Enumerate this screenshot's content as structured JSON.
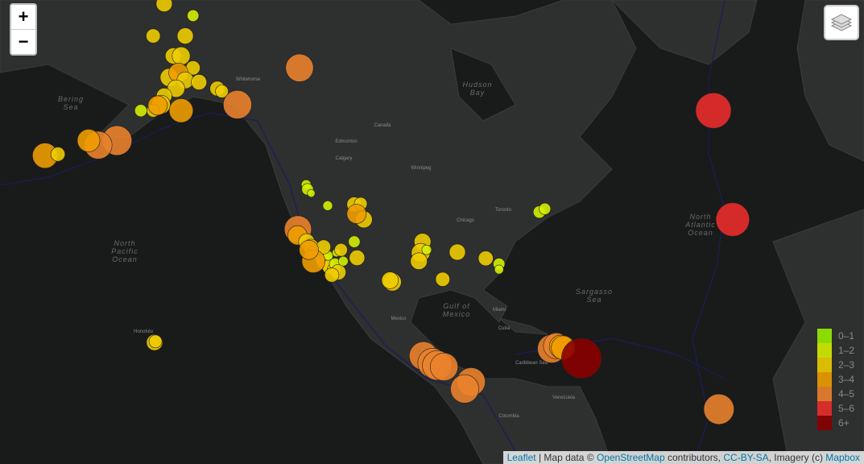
{
  "zoom": {
    "in": "+",
    "out": "−"
  },
  "legend": [
    {
      "label": "0–1",
      "color": "#98ee00"
    },
    {
      "label": "1–2",
      "color": "#d4ee00"
    },
    {
      "label": "2–3",
      "color": "#eecc00"
    },
    {
      "label": "3–4",
      "color": "#ee9c00"
    },
    {
      "label": "4–5",
      "color": "#ea822c"
    },
    {
      "label": "5–6",
      "color": "#ea2c2c"
    },
    {
      "label": "6+",
      "color": "#8b0000"
    }
  ],
  "map_labels": [
    [
      "Bering",
      "Sea"
    ],
    [
      "North",
      "Pacific",
      "Ocean"
    ],
    [
      "Hudson",
      "Bay"
    ],
    [
      "Gulf of",
      "Mexico"
    ],
    [
      "North",
      "Atlantic",
      "Ocean"
    ],
    [
      "Sargasso",
      "Sea"
    ],
    [
      "Caribbean Sea"
    ],
    [
      "Canada"
    ],
    [
      "Mexico"
    ],
    [
      "Chicago"
    ],
    [
      "Toronto"
    ],
    [
      "Miami"
    ],
    [
      "Cuba"
    ],
    [
      "Venezuela"
    ],
    [
      "Colombia"
    ],
    [
      "Edmonton"
    ],
    [
      "Calgary"
    ],
    [
      "Winnipeg"
    ],
    [
      "Whitehorse"
    ],
    [
      "Honolulu"
    ]
  ],
  "earthquakes": [
    [
      -153.6,
      67.9,
      2.5
    ],
    [
      -156.0,
      65.1,
      2.2
    ],
    [
      -149.0,
      65.1,
      2.5
    ],
    [
      -147.3,
      66.9,
      1.8
    ],
    [
      -151.6,
      63.2,
      2.5
    ],
    [
      -149.9,
      63.2,
      2.8
    ],
    [
      -147.3,
      62.0,
      2.2
    ],
    [
      -152.5,
      61.0,
      2.8
    ],
    [
      -150.5,
      61.5,
      3.0
    ],
    [
      -149.0,
      60.7,
      2.6
    ],
    [
      -151.0,
      59.8,
      2.7
    ],
    [
      -153.6,
      59.0,
      2.4
    ],
    [
      -154.3,
      58.0,
      2.9
    ],
    [
      -156.0,
      57.3,
      2.0
    ],
    [
      -158.7,
      57.3,
      1.9
    ],
    [
      -142.0,
      59.8,
      2.3
    ],
    [
      -141.0,
      59.5,
      2.0
    ],
    [
      -146.0,
      60.5,
      2.4
    ],
    [
      -155.0,
      57.9,
      3.0
    ],
    [
      -149.9,
      57.3,
      3.7
    ],
    [
      -137.6,
      58.0,
      4.4
    ],
    [
      -124.05,
      62.0,
      4.3
    ],
    [
      -163.9,
      53.6,
      4.6
    ],
    [
      -168.0,
      53.0,
      4.3
    ],
    [
      -170.1,
      53.6,
      3.5
    ],
    [
      -179.6,
      51.6,
      3.9
    ],
    [
      -176.8,
      51.8,
      2.2
    ],
    [
      -155.7,
      19.3,
      2.5
    ],
    [
      -155.5,
      19.5,
      2.0
    ],
    [
      -122.6,
      47.5,
      1.5
    ],
    [
      -122.3,
      46.8,
      1.8
    ],
    [
      -121.5,
      46.2,
      1.2
    ],
    [
      -117.9,
      44.3,
      1.5
    ],
    [
      -112.1,
      44.5,
      2.3
    ],
    [
      -110.7,
      44.6,
      2.0
    ],
    [
      -110.0,
      42.1,
      2.6
    ],
    [
      -111.6,
      43.0,
      3.0
    ],
    [
      -124.4,
      40.5,
      4.2
    ],
    [
      -124.5,
      39.5,
      3.0
    ],
    [
      -122.5,
      38.4,
      2.5
    ],
    [
      -121.5,
      37.5,
      2.4
    ],
    [
      -120.8,
      36.5,
      2.2
    ],
    [
      -119.5,
      35.8,
      2.0
    ],
    [
      -118.5,
      35.0,
      2.7
    ],
    [
      -117.5,
      34.0,
      2.3
    ],
    [
      -116.5,
      33.5,
      2.1
    ],
    [
      -117.8,
      36.0,
      1.5
    ],
    [
      -118.8,
      37.5,
      2.2
    ],
    [
      -116.3,
      34.5,
      1.8
    ],
    [
      -115.6,
      33.0,
      2.4
    ],
    [
      -121.0,
      35.0,
      3.6
    ],
    [
      -122.0,
      37.0,
      3.0
    ],
    [
      -116.0,
      36.5,
      1.3
    ],
    [
      -115.0,
      37.0,
      2.0
    ],
    [
      -114.5,
      35.0,
      1.5
    ],
    [
      -117.0,
      32.5,
      2.2
    ],
    [
      -112.1,
      38.4,
      1.8
    ],
    [
      -111.5,
      35.6,
      2.4
    ],
    [
      -103.8,
      31.2,
      2.8
    ],
    [
      -104.3,
      31.5,
      2.6
    ],
    [
      -97.2,
      38.4,
      2.6
    ],
    [
      -97.6,
      36.5,
      2.9
    ],
    [
      -98.0,
      35.0,
      2.6
    ],
    [
      -96.3,
      37.0,
      1.5
    ],
    [
      -92.8,
      31.7,
      2.2
    ],
    [
      -89.6,
      36.6,
      2.5
    ],
    [
      -83.4,
      35.5,
      2.3
    ],
    [
      -80.5,
      34.5,
      1.8
    ],
    [
      -80.5,
      33.5,
      1.4
    ],
    [
      -71.7,
      43.3,
      1.9
    ],
    [
      -70.5,
      43.8,
      1.8
    ],
    [
      -97.0,
      16.5,
      4.4
    ],
    [
      -95.0,
      15.0,
      4.6
    ],
    [
      -94.0,
      14.5,
      4.6
    ],
    [
      -92.5,
      14.2,
      4.3
    ],
    [
      -86.6,
      11.0,
      4.4
    ],
    [
      -88.0,
      9.5,
      4.4
    ],
    [
      -69.0,
      18.0,
      4.4
    ],
    [
      -68.0,
      18.6,
      4.0
    ],
    [
      -67.0,
      18.4,
      3.6
    ],
    [
      -66.5,
      18.2,
      3.7
    ],
    [
      -62.5,
      16.0,
      6.2
    ],
    [
      -33.7,
      57.3,
      5.5
    ],
    [
      -29.5,
      42.1,
      5.2
    ],
    [
      -32.5,
      5.1,
      4.7
    ]
  ],
  "attribution": [
    "Leaflet",
    " | Map data © ",
    "OpenStreetMap",
    " contributors, ",
    "CC-BY-SA",
    ", Imagery (c) ",
    "Mapbox"
  ]
}
